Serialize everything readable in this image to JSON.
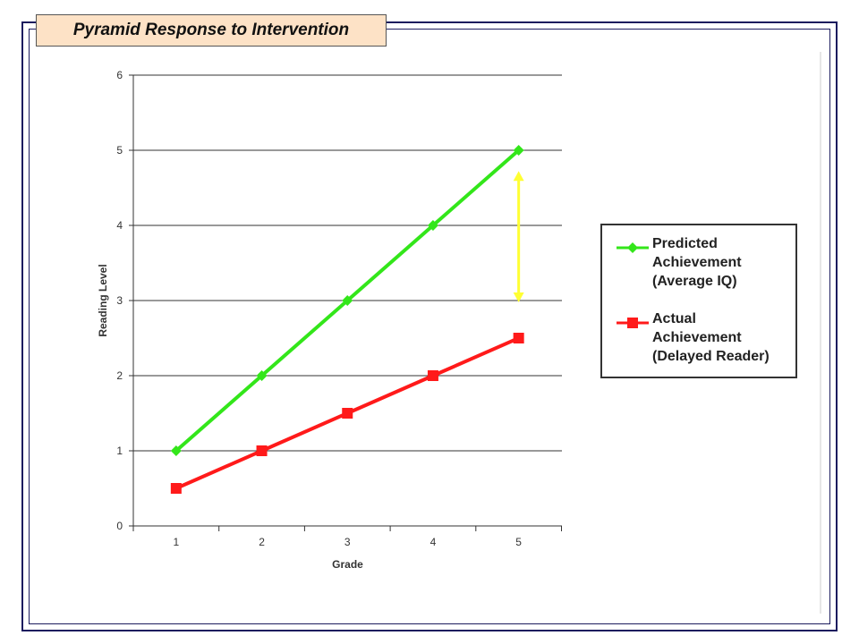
{
  "slide": {
    "title": "Pyramid Response to Intervention"
  },
  "chart_data": {
    "type": "line",
    "xlabel": "Grade",
    "ylabel": "Reading Level",
    "x": [
      1,
      2,
      3,
      4,
      5
    ],
    "ylim": [
      0,
      6
    ],
    "yticks": [
      0,
      1,
      2,
      3,
      4,
      5,
      6
    ],
    "grid": "horizontal",
    "legend_position": "right",
    "series": [
      {
        "name": "Predicted Achievement (Average IQ)",
        "values": [
          1,
          2,
          3,
          4,
          5
        ],
        "color": "#33e61a",
        "marker": "diamond"
      },
      {
        "name": "Actual Achievement (Delayed Reader)",
        "values": [
          0.5,
          1,
          1.5,
          2,
          2.5
        ],
        "color": "#ff1a1a",
        "marker": "square"
      }
    ],
    "annotations": [
      {
        "type": "double-arrow",
        "x": 5,
        "y_from": 3,
        "y_to": 4.7,
        "color": "#ffff33"
      }
    ]
  }
}
